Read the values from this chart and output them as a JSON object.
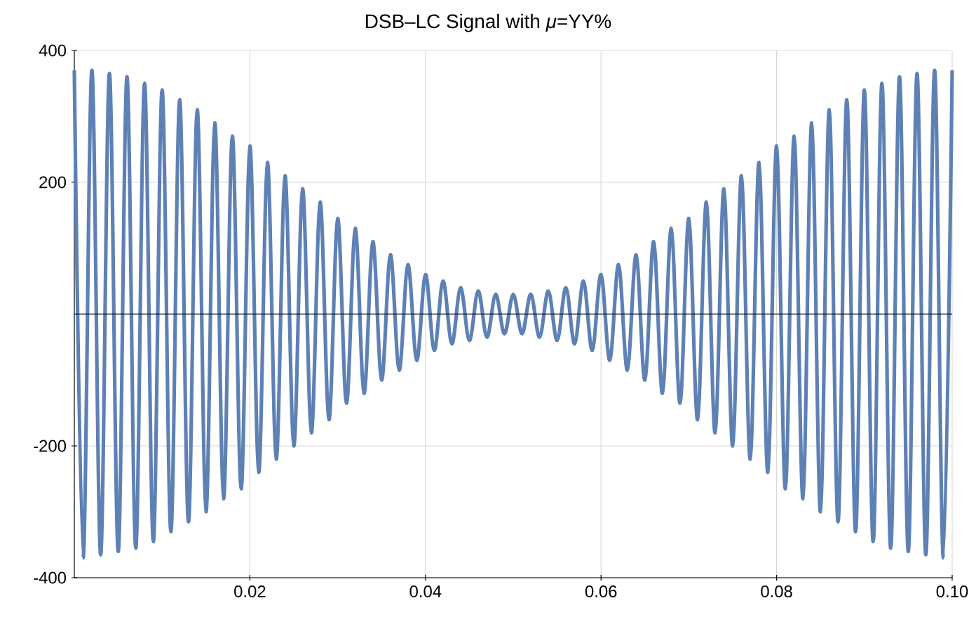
{
  "chart_data": {
    "type": "line",
    "title": "DSB–LC Signal with *μ*=YY%",
    "x": [
      0,
      0.001,
      0.002,
      0.003,
      0.004,
      0.005,
      0.006,
      0.007,
      0.008,
      0.009,
      0.01,
      0.011,
      0.012,
      0.013,
      0.014,
      0.015,
      0.016,
      0.017,
      0.018,
      0.019,
      0.02,
      0.021,
      0.022,
      0.023,
      0.024,
      0.025,
      0.026,
      0.027,
      0.028,
      0.029,
      0.03,
      0.031,
      0.032,
      0.033,
      0.034,
      0.035,
      0.036,
      0.037,
      0.038,
      0.039,
      0.04,
      0.041,
      0.042,
      0.043,
      0.044,
      0.045,
      0.046,
      0.047,
      0.048,
      0.049,
      0.05,
      0.051,
      0.052,
      0.053,
      0.054,
      0.055,
      0.056,
      0.057,
      0.058,
      0.059,
      0.06,
      0.061,
      0.062,
      0.063,
      0.064,
      0.065,
      0.066,
      0.067,
      0.068,
      0.069,
      0.07,
      0.071,
      0.072,
      0.073,
      0.074,
      0.075,
      0.076,
      0.077,
      0.078,
      0.079,
      0.08,
      0.081,
      0.082,
      0.083,
      0.084,
      0.085,
      0.086,
      0.087,
      0.088,
      0.089,
      0.09,
      0.091,
      0.092,
      0.093,
      0.094,
      0.095,
      0.096,
      0.097,
      0.098,
      0.099,
      0.1
    ],
    "values": [
      370,
      -370,
      370,
      -365,
      365,
      -360,
      360,
      -355,
      350,
      -345,
      340,
      -330,
      325,
      -315,
      310,
      -300,
      290,
      -280,
      270,
      -265,
      255,
      -240,
      230,
      -220,
      210,
      -200,
      190,
      -180,
      170,
      -160,
      145,
      -135,
      130,
      -120,
      110,
      -100,
      90,
      -85,
      75,
      -70,
      60,
      -55,
      50,
      -45,
      40,
      -40,
      35,
      -35,
      30,
      -30,
      30,
      -30,
      30,
      -35,
      35,
      -40,
      40,
      -45,
      50,
      -55,
      60,
      -70,
      75,
      -85,
      90,
      -100,
      110,
      -120,
      130,
      -135,
      145,
      -160,
      170,
      -180,
      190,
      -200,
      210,
      -220,
      230,
      -240,
      255,
      -265,
      270,
      -280,
      290,
      -300,
      310,
      -315,
      325,
      -330,
      340,
      -345,
      350,
      -355,
      360,
      -360,
      365,
      -365,
      370,
      -370,
      370
    ],
    "color": "#5e81b5",
    "xlim": [
      0,
      0.1
    ],
    "ylim": [
      -400,
      400
    ],
    "xticks": [
      0.02,
      0.04,
      0.06,
      0.08,
      {
        "value": 0.1,
        "label": "0.10"
      }
    ],
    "yticks": [
      -400,
      -200,
      200,
      400
    ],
    "grid": true
  }
}
